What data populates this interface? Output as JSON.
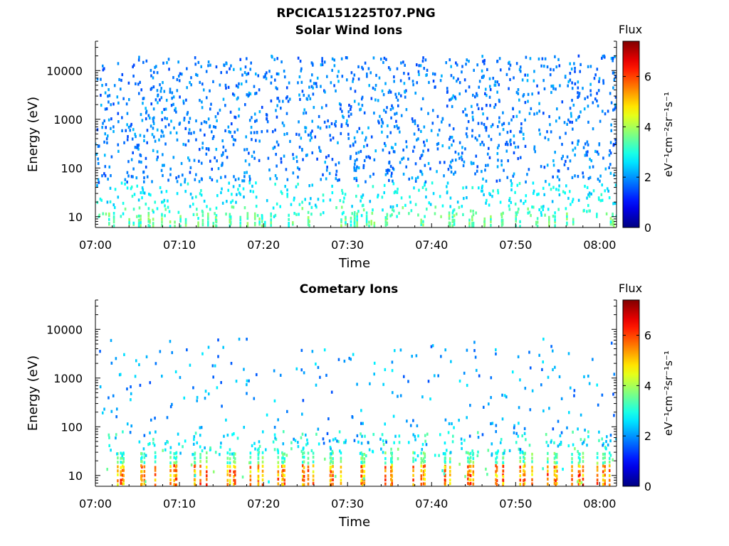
{
  "page_title": "RPCICA151225T07.PNG",
  "chart_data": [
    {
      "type": "heatmap",
      "title": "Solar Wind Ions",
      "xlabel": "Time",
      "ylabel": "Energy (eV)",
      "x_ticks": [
        "07:00",
        "07:10",
        "07:20",
        "07:30",
        "07:40",
        "07:50",
        "08:00"
      ],
      "x_range_minutes": [
        0,
        62
      ],
      "y_scale": "log",
      "y_range": [
        6,
        40000
      ],
      "y_ticks": [
        {
          "value": 10,
          "label": "10"
        },
        {
          "value": 100,
          "label": "100"
        },
        {
          "value": 1000,
          "label": "1000"
        },
        {
          "value": 10000,
          "label": "10000"
        }
      ],
      "colorbar": {
        "title": "Flux",
        "label": "eV⁻¹cm⁻²sr⁻¹s⁻¹",
        "range": [
          0,
          7.4
        ],
        "ticks": [
          "0",
          "2",
          "4",
          "6"
        ],
        "colormap": "jet"
      },
      "grid": false,
      "description": "sparse scattered counts across 10 eV–20 keV; flux mostly 1.5–3.5, higher near 10 eV"
    },
    {
      "type": "heatmap",
      "title": "Cometary Ions",
      "xlabel": "Time",
      "ylabel": "Energy (eV)",
      "x_ticks": [
        "07:00",
        "07:10",
        "07:20",
        "07:30",
        "07:40",
        "07:50",
        "08:00"
      ],
      "x_range_minutes": [
        0,
        62
      ],
      "y_scale": "log",
      "y_range": [
        6,
        40000
      ],
      "y_ticks": [
        {
          "value": 10,
          "label": "10"
        },
        {
          "value": 100,
          "label": "100"
        },
        {
          "value": 1000,
          "label": "1000"
        },
        {
          "value": 10000,
          "label": "10000"
        }
      ],
      "colorbar": {
        "title": "Flux",
        "label": "eV⁻¹cm⁻²sr⁻¹s⁻¹",
        "range": [
          0,
          7.4
        ],
        "ticks": [
          "0",
          "2",
          "4",
          "6"
        ],
        "colormap": "jet"
      },
      "grid": false,
      "bursts_minutes": [
        2.5,
        6.3,
        9.5,
        12.7,
        15.9,
        19.1,
        22.3,
        25.5,
        28.7,
        31.9,
        35.1,
        38.3,
        41.5,
        44.7,
        47.9,
        51.1,
        54.3,
        57.5,
        60.5
      ],
      "description": "periodic bursts near 10–40 eV with flux 4–6.5; sparse higher-energy counts"
    }
  ]
}
